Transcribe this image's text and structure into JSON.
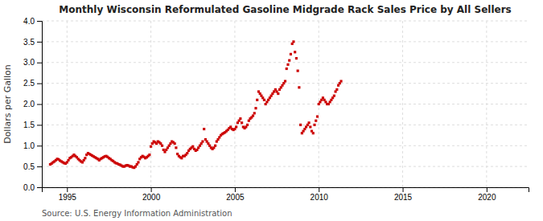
{
  "chart_data": {
    "type": "scatter",
    "title": "Monthly Wisconsin Reformulated Gasoline Midgrade Rack Sales Price by All Sellers",
    "ylabel": "Dollars per Gallon",
    "annotations": [
      "Source: U.S. Energy Information Administration"
    ],
    "color": "#cc0000",
    "marker": "square",
    "grid": true,
    "xlim": [
      1993.5,
      2022.5
    ],
    "ylim": [
      0.0,
      4.0
    ],
    "xticks": [
      1995,
      2000,
      2005,
      2010,
      2015,
      2020
    ],
    "yticks": [
      {
        "value": 0.0,
        "label": "0.0"
      },
      0.5,
      {
        "value": 1.0,
        "label": "1.0"
      },
      1.5,
      {
        "value": 2.0,
        "label": "2.0"
      },
      2.5,
      {
        "value": 3.0,
        "label": "3.0"
      },
      3.5,
      {
        "value": 4.0,
        "label": "4.0"
      }
    ],
    "x": [
      1994.0,
      1994.083,
      1994.167,
      1994.25,
      1994.333,
      1994.417,
      1994.5,
      1994.583,
      1994.667,
      1994.75,
      1994.833,
      1994.917,
      1995.0,
      1995.083,
      1995.167,
      1995.25,
      1995.333,
      1995.417,
      1995.5,
      1995.583,
      1995.667,
      1995.75,
      1995.833,
      1995.917,
      1996.0,
      1996.083,
      1996.167,
      1996.25,
      1996.333,
      1996.417,
      1996.5,
      1996.583,
      1996.667,
      1996.75,
      1996.833,
      1996.917,
      1997.0,
      1997.083,
      1997.167,
      1997.25,
      1997.333,
      1997.417,
      1997.5,
      1997.583,
      1997.667,
      1997.75,
      1997.833,
      1997.917,
      1998.0,
      1998.083,
      1998.167,
      1998.25,
      1998.333,
      1998.417,
      1998.5,
      1998.583,
      1998.667,
      1998.75,
      1998.833,
      1998.917,
      1999.0,
      1999.083,
      1999.167,
      1999.25,
      1999.333,
      1999.417,
      1999.5,
      1999.583,
      1999.667,
      1999.75,
      1999.833,
      1999.917,
      2000.0,
      2000.083,
      2000.167,
      2000.25,
      2000.333,
      2000.417,
      2000.5,
      2000.583,
      2000.667,
      2000.75,
      2000.833,
      2000.917,
      2001.0,
      2001.083,
      2001.167,
      2001.25,
      2001.333,
      2001.417,
      2001.5,
      2001.583,
      2001.667,
      2001.75,
      2001.833,
      2001.917,
      2002.0,
      2002.083,
      2002.167,
      2002.25,
      2002.333,
      2002.417,
      2002.5,
      2002.583,
      2002.667,
      2002.75,
      2002.833,
      2002.917,
      2003.0,
      2003.083,
      2003.167,
      2003.25,
      2003.333,
      2003.417,
      2003.5,
      2003.583,
      2003.667,
      2003.75,
      2003.833,
      2003.917,
      2004.0,
      2004.083,
      2004.167,
      2004.25,
      2004.333,
      2004.417,
      2004.5,
      2004.583,
      2004.667,
      2004.75,
      2004.833,
      2004.917,
      2005.0,
      2005.083,
      2005.167,
      2005.25,
      2005.333,
      2005.417,
      2005.5,
      2005.583,
      2005.667,
      2005.75,
      2005.833,
      2005.917,
      2006.0,
      2006.083,
      2006.167,
      2006.25,
      2006.333,
      2006.417,
      2006.5,
      2006.583,
      2006.667,
      2006.75,
      2006.833,
      2006.917,
      2007.0,
      2007.083,
      2007.167,
      2007.25,
      2007.333,
      2007.417,
      2007.5,
      2007.583,
      2007.667,
      2007.75,
      2007.833,
      2007.917,
      2008.0,
      2008.083,
      2008.167,
      2008.25,
      2008.333,
      2008.417,
      2008.5,
      2008.583,
      2008.667,
      2008.75,
      2008.833,
      2008.917,
      2009.0,
      2009.083,
      2009.167,
      2009.25,
      2009.333,
      2009.417,
      2009.5,
      2009.583,
      2009.667,
      2009.75,
      2009.833,
      2009.917,
      2010.0,
      2010.083,
      2010.167,
      2010.25,
      2010.333,
      2010.417,
      2010.5,
      2010.583,
      2010.667,
      2010.75,
      2010.833,
      2010.917,
      2011.0,
      2011.083,
      2011.167,
      2011.25,
      2011.333
    ],
    "values": [
      0.55,
      0.57,
      0.6,
      0.62,
      0.65,
      0.68,
      0.67,
      0.64,
      0.62,
      0.6,
      0.58,
      0.57,
      0.6,
      0.65,
      0.7,
      0.72,
      0.75,
      0.78,
      0.75,
      0.72,
      0.68,
      0.65,
      0.62,
      0.6,
      0.65,
      0.7,
      0.78,
      0.82,
      0.8,
      0.78,
      0.76,
      0.74,
      0.72,
      0.7,
      0.68,
      0.65,
      0.68,
      0.7,
      0.72,
      0.74,
      0.75,
      0.73,
      0.7,
      0.68,
      0.65,
      0.63,
      0.6,
      0.58,
      0.57,
      0.55,
      0.54,
      0.52,
      0.5,
      0.5,
      0.52,
      0.53,
      0.52,
      0.5,
      0.5,
      0.48,
      0.47,
      0.5,
      0.55,
      0.6,
      0.68,
      0.72,
      0.75,
      0.73,
      0.7,
      0.72,
      0.75,
      0.78,
      0.98,
      1.05,
      1.1,
      1.08,
      1.05,
      1.1,
      1.08,
      1.05,
      1.0,
      0.9,
      0.85,
      0.9,
      0.95,
      1.0,
      1.05,
      1.1,
      1.08,
      1.05,
      0.95,
      0.8,
      0.75,
      0.72,
      0.7,
      0.75,
      0.75,
      0.78,
      0.82,
      0.88,
      0.92,
      0.95,
      0.98,
      0.92,
      0.88,
      0.9,
      0.95,
      1.0,
      1.05,
      1.1,
      1.4,
      1.15,
      1.1,
      1.05,
      1.0,
      0.95,
      0.92,
      0.95,
      1.0,
      1.1,
      1.15,
      1.2,
      1.25,
      1.28,
      1.3,
      1.32,
      1.35,
      1.38,
      1.42,
      1.45,
      1.4,
      1.38,
      1.4,
      1.45,
      1.55,
      1.6,
      1.65,
      1.55,
      1.45,
      1.42,
      1.45,
      1.5,
      1.6,
      1.65,
      1.68,
      1.72,
      1.78,
      1.9,
      2.1,
      2.3,
      2.25,
      2.2,
      2.15,
      2.1,
      2.0,
      2.05,
      2.1,
      2.15,
      2.2,
      2.25,
      2.3,
      2.35,
      2.3,
      2.25,
      2.35,
      2.4,
      2.45,
      2.5,
      2.55,
      2.85,
      2.95,
      3.05,
      3.2,
      3.45,
      3.5,
      3.25,
      3.1,
      2.8,
      2.4,
      1.5,
      1.3,
      1.35,
      1.4,
      1.45,
      1.5,
      1.55,
      1.45,
      1.35,
      1.3,
      1.5,
      1.6,
      1.7,
      2.0,
      2.05,
      2.1,
      2.15,
      2.1,
      2.05,
      2.0,
      2.0,
      2.05,
      2.1,
      2.15,
      2.2,
      2.3,
      2.35,
      2.45,
      2.5,
      2.55
    ]
  }
}
